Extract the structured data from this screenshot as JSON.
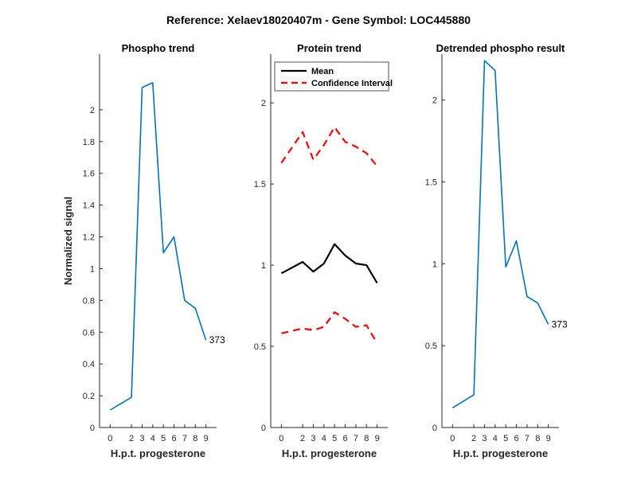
{
  "figure": {
    "suptitle": "Reference:  Xelaev18020407m - Gene Symbol:  LOC445880",
    "colors": {
      "series_blue": "#0072BD",
      "mean": "#000000",
      "ci": "#FF0000",
      "axis": "#262626"
    }
  },
  "chart_data": [
    {
      "type": "line",
      "title": "Phospho trend",
      "xlabel": "H.p.t. progesterone",
      "ylabel": "Normalized signal",
      "x": [
        0,
        2,
        3,
        4,
        5,
        6,
        7,
        8,
        9
      ],
      "xtick_labels": [
        "0",
        "2",
        "3",
        "4",
        "5",
        "6",
        "7",
        "8",
        "9"
      ],
      "ylim": [
        0,
        2.35
      ],
      "yticks": [
        0,
        0.2,
        0.4,
        0.6,
        0.8,
        1,
        1.2,
        1.4,
        1.6,
        1.8,
        2
      ],
      "ytick_labels": [
        "0",
        "0.2",
        "0.4",
        "0.6",
        "0.8",
        "1",
        "1.2",
        "1.4",
        "1.6",
        "1.8",
        "2"
      ],
      "series": [
        {
          "values": [
            0.11,
            0.19,
            2.14,
            2.17,
            1.1,
            1.2,
            0.8,
            0.75,
            0.55
          ],
          "color": "#0072BD"
        }
      ],
      "annotation": {
        "text": "373",
        "x": 9,
        "y": 0.55
      },
      "grid": false
    },
    {
      "type": "line",
      "title": "Protein trend",
      "xlabel": "H.p.t. progesterone",
      "ylabel": "",
      "x": [
        0,
        2,
        3,
        4,
        5,
        6,
        7,
        8,
        9
      ],
      "xtick_labels": [
        "0",
        "2",
        "3",
        "4",
        "5",
        "6",
        "7",
        "8",
        "9"
      ],
      "ylim": [
        0,
        2.3
      ],
      "yticks": [
        0,
        0.5,
        1,
        1.5,
        2
      ],
      "ytick_labels": [
        "0",
        "0.5",
        "1",
        "1.5",
        "2"
      ],
      "series": [
        {
          "name": "Mean",
          "values": [
            0.95,
            1.02,
            0.96,
            1.01,
            1.13,
            1.06,
            1.01,
            1.0,
            0.89
          ],
          "color": "#000000",
          "dash": "solid"
        },
        {
          "name": "Confidence Interval",
          "values": [
            1.63,
            1.82,
            1.65,
            1.74,
            1.85,
            1.76,
            1.73,
            1.69,
            1.61
          ],
          "color": "#FF0000",
          "dash": "dashed"
        },
        {
          "values": [
            0.58,
            0.61,
            0.6,
            0.62,
            0.71,
            0.67,
            0.62,
            0.63,
            0.52
          ],
          "color": "#FF0000",
          "dash": "dashed"
        }
      ],
      "legend": {
        "position": "top-left",
        "entries": [
          "Mean",
          "Confidence Interval"
        ]
      },
      "grid": false
    },
    {
      "type": "line",
      "title": "Detrended phospho result",
      "xlabel": "H.p.t. progesterone",
      "ylabel": "",
      "x": [
        0,
        2,
        3,
        4,
        5,
        6,
        7,
        8,
        9
      ],
      "xtick_labels": [
        "0",
        "2",
        "3",
        "4",
        "5",
        "6",
        "7",
        "8",
        "9"
      ],
      "ylim": [
        0,
        2.28
      ],
      "yticks": [
        0,
        0.5,
        1,
        1.5,
        2
      ],
      "ytick_labels": [
        "0",
        "0.5",
        "1",
        "1.5",
        "2"
      ],
      "series": [
        {
          "values": [
            0.12,
            0.2,
            2.24,
            2.18,
            0.98,
            1.14,
            0.8,
            0.76,
            0.63
          ],
          "color": "#0072BD"
        }
      ],
      "annotation": {
        "text": "373",
        "x": 9,
        "y": 0.63
      },
      "grid": false
    }
  ]
}
